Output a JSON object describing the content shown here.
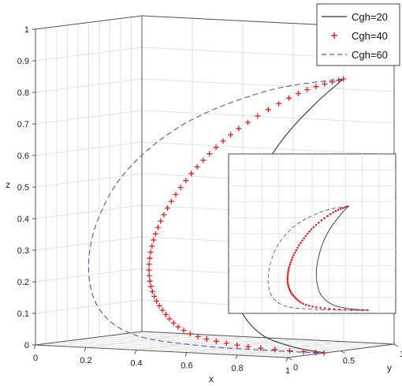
{
  "chart_data": {
    "type": "line",
    "title": "",
    "view": "3d",
    "xlabel": "x",
    "ylabel": "y",
    "zlabel": "z",
    "xlim": [
      0,
      1
    ],
    "ylim": [
      0,
      1
    ],
    "zlim": [
      0,
      1
    ],
    "x_ticks": [
      "0",
      "0.2",
      "0.4",
      "0.6",
      "0.8",
      "1"
    ],
    "y_ticks": [
      "0",
      "0.5",
      "1"
    ],
    "z_ticks": [
      "0",
      "0.1",
      "0.2",
      "0.3",
      "0.4",
      "0.5",
      "0.6",
      "0.7",
      "0.8",
      "0.9",
      "1"
    ],
    "grid": true,
    "legend_position": "top-right",
    "series": [
      {
        "name": "Cgh=20",
        "style": "solid",
        "color": "#333333",
        "points": [
          [
            0.82,
            0.95,
            0.835
          ],
          [
            0.75,
            0.86,
            0.76
          ],
          [
            0.67,
            0.77,
            0.66
          ],
          [
            0.61,
            0.69,
            0.55
          ],
          [
            0.57,
            0.63,
            0.43
          ],
          [
            0.55,
            0.58,
            0.31
          ],
          [
            0.56,
            0.54,
            0.2
          ],
          [
            0.6,
            0.51,
            0.11
          ],
          [
            0.7,
            0.47,
            0.04
          ],
          [
            0.85,
            0.41,
            0.01
          ],
          [
            1.0,
            0.35,
            0.0
          ]
        ]
      },
      {
        "name": "Cgh=40",
        "style": "plus",
        "color": "#dd2222",
        "points": [
          [
            0.82,
            0.95,
            0.835
          ],
          [
            0.7,
            0.81,
            0.79
          ],
          [
            0.54,
            0.63,
            0.68
          ],
          [
            0.43,
            0.5,
            0.56
          ],
          [
            0.35,
            0.41,
            0.43
          ],
          [
            0.31,
            0.36,
            0.31
          ],
          [
            0.31,
            0.34,
            0.2
          ],
          [
            0.36,
            0.34,
            0.11
          ],
          [
            0.47,
            0.34,
            0.04
          ],
          [
            0.7,
            0.34,
            0.008
          ],
          [
            1.0,
            0.34,
            0.0
          ]
        ]
      },
      {
        "name": "Cgh=60",
        "style": "dashed",
        "color": "#5555bb",
        "points": [
          [
            0.82,
            0.95,
            0.835
          ],
          [
            0.62,
            0.72,
            0.8
          ],
          [
            0.4,
            0.47,
            0.7
          ],
          [
            0.24,
            0.29,
            0.55
          ],
          [
            0.16,
            0.19,
            0.38
          ],
          [
            0.14,
            0.17,
            0.22
          ],
          [
            0.18,
            0.2,
            0.1
          ],
          [
            0.3,
            0.25,
            0.03
          ],
          [
            0.55,
            0.3,
            0.005
          ],
          [
            0.8,
            0.32,
            0.001
          ],
          [
            1.0,
            0.33,
            0.0
          ]
        ]
      }
    ],
    "inset": {
      "description_hidden": true,
      "grid": true,
      "series_ref": [
        "Cgh=20",
        "Cgh=40",
        "Cgh=60"
      ]
    }
  }
}
